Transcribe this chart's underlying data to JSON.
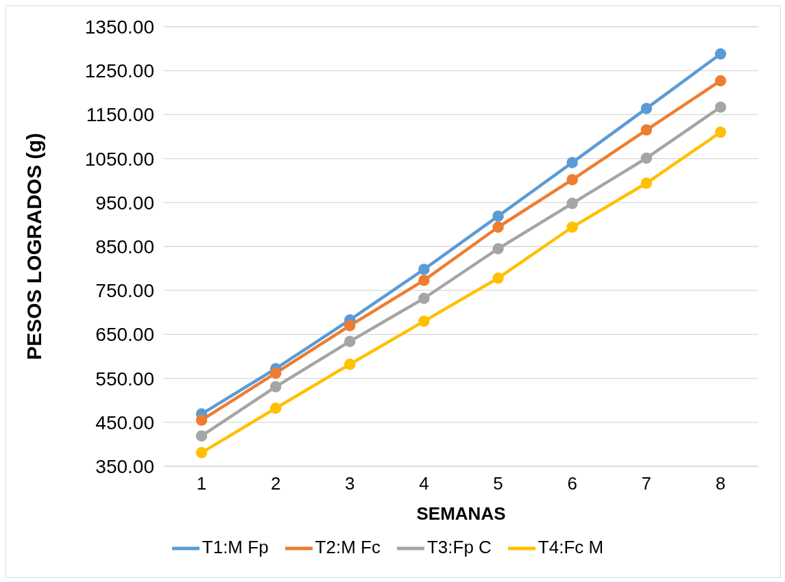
{
  "chart_data": {
    "type": "line",
    "xlabel": "SEMANAS",
    "ylabel": "PESOS LOGRADOS (g)",
    "categories": [
      "1",
      "2",
      "3",
      "4",
      "5",
      "6",
      "7",
      "8"
    ],
    "series": [
      {
        "name": "T1:M Fp",
        "color": "#5b9bd5",
        "values": [
          469,
          572,
          683,
          798,
          919,
          1041,
          1164,
          1288
        ]
      },
      {
        "name": "T2:M Fc",
        "color": "#ed7d31",
        "values": [
          455,
          562,
          670,
          773,
          894,
          1002,
          1115,
          1227
        ]
      },
      {
        "name": "T3:Fp C",
        "color": "#a5a5a5",
        "values": [
          419,
          531,
          634,
          732,
          845,
          948,
          1051,
          1167
        ]
      },
      {
        "name": "T4:Fc M",
        "color": "#ffc000",
        "values": [
          381,
          482,
          582,
          680,
          778,
          894,
          994,
          1110
        ]
      }
    ],
    "ylim": [
      350,
      1350
    ],
    "yticks": [
      {
        "value": 350,
        "label": "350.00"
      },
      {
        "value": 450,
        "label": "450.00"
      },
      {
        "value": 550,
        "label": "550.00"
      },
      {
        "value": 650,
        "label": "650.00"
      },
      {
        "value": 750,
        "label": "750.00"
      },
      {
        "value": 850,
        "label": "850.00"
      },
      {
        "value": 950,
        "label": "950.00"
      },
      {
        "value": 1050,
        "label": "1050.00"
      },
      {
        "value": 1150,
        "label": "1150.00"
      },
      {
        "value": 1250,
        "label": "1250.00"
      },
      {
        "value": 1350,
        "label": "1350.00"
      }
    ],
    "grid": "y",
    "legend": "bottom",
    "marker": "circle",
    "line_style": "solid"
  }
}
